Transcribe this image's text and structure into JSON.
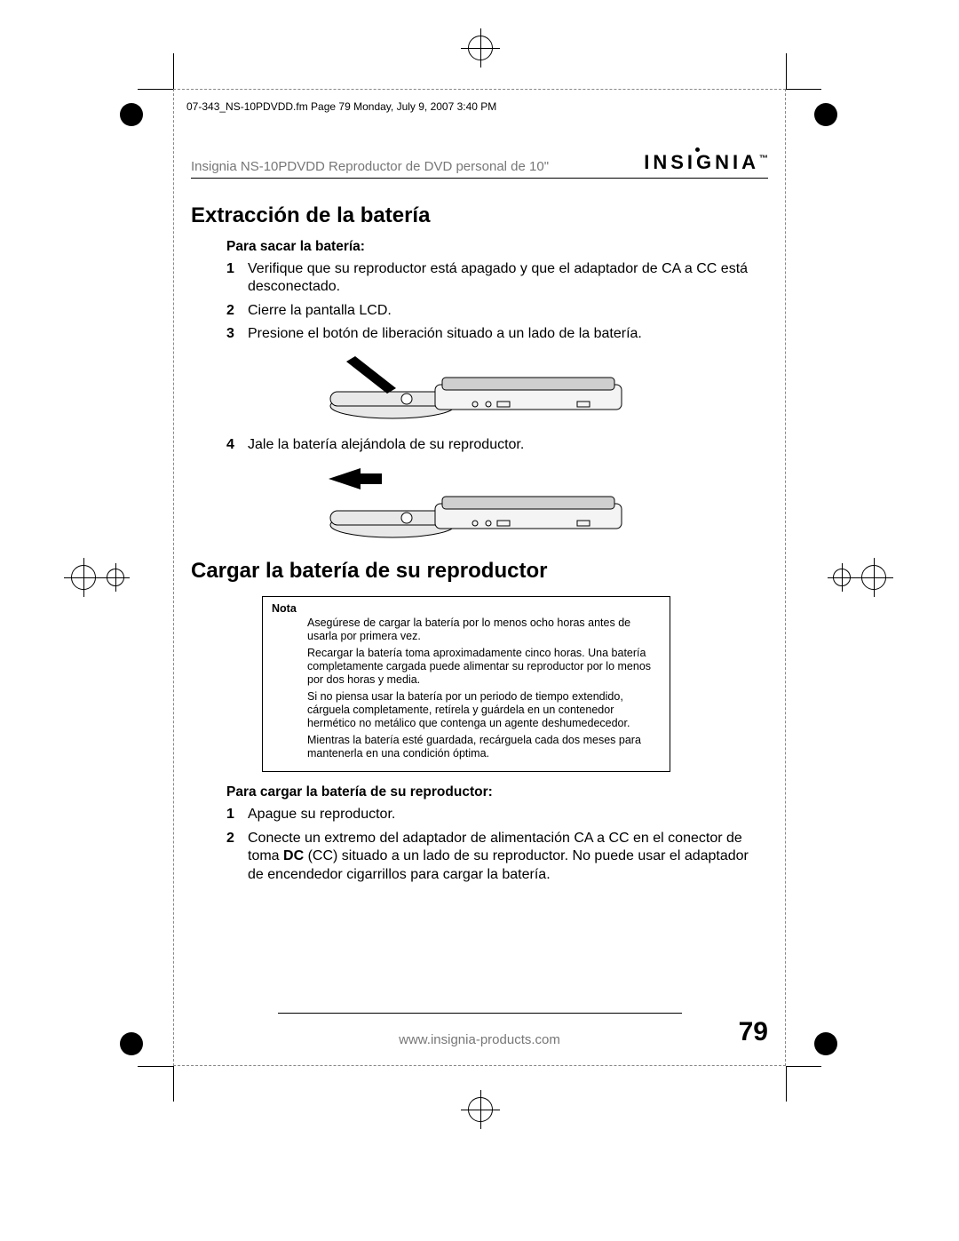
{
  "print_meta": "07-343_NS-10PDVDD.fm  Page 79  Monday, July 9, 2007  3:40 PM",
  "header": {
    "product_line": "Insignia NS-10PDVDD Reproductor de DVD personal de 10\"",
    "brand": "INSIGNIA"
  },
  "section1": {
    "title": "Extracción de la batería",
    "subhead": "Para sacar la batería:",
    "steps": [
      "Verifique que su reproductor está apagado y que el adaptador de CA a CC está desconectado.",
      "Cierre la pantalla LCD.",
      "Presione el botón de liberación situado a un lado de la batería.",
      "Jale la batería alejándola de su reproductor."
    ]
  },
  "section2": {
    "title": "Cargar la batería de su reproductor",
    "nota_label": "Nota",
    "nota_paras": [
      "Asegúrese de cargar la batería por lo menos ocho horas antes de usarla por primera vez.",
      "Recargar la batería toma aproximadamente cinco horas. Una batería completamente cargada puede alimentar su reproductor por lo menos por dos horas y media.",
      "Si no piensa usar la batería por un periodo de tiempo extendido, cárguela completamente, retírela y guárdela en un contenedor hermético no metálico que contenga un agente deshumedecedor.",
      "Mientras la batería esté guardada, recárguela cada dos meses para mantenerla en una condición óptima."
    ],
    "subhead": "Para cargar la batería de su reproductor:",
    "steps": [
      "Apague su reproductor.",
      "Conecte un extremo del adaptador de alimentación CA a CC en el conector de toma <b>DC</b> (CC) situado a un lado de su reproductor. No puede usar el adaptador de encendedor cigarrillos para cargar la batería."
    ]
  },
  "footer": {
    "url": "www.insignia-products.com",
    "page": "79"
  },
  "figures": {
    "device_color_body": "#e8e8e8",
    "device_color_lid": "#cfcfcf",
    "arrow_color": "#000000"
  }
}
